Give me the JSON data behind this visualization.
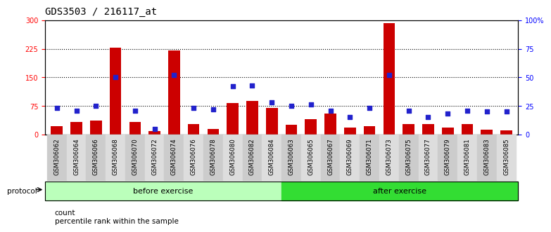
{
  "title": "GDS3503 / 216117_at",
  "samples": [
    "GSM306062",
    "GSM306064",
    "GSM306066",
    "GSM306068",
    "GSM306070",
    "GSM306072",
    "GSM306074",
    "GSM306076",
    "GSM306078",
    "GSM306080",
    "GSM306082",
    "GSM306084",
    "GSM306063",
    "GSM306065",
    "GSM306067",
    "GSM306069",
    "GSM306071",
    "GSM306073",
    "GSM306075",
    "GSM306077",
    "GSM306079",
    "GSM306081",
    "GSM306083",
    "GSM306085"
  ],
  "counts": [
    22,
    32,
    36,
    228,
    32,
    8,
    220,
    28,
    15,
    82,
    88,
    70,
    25,
    40,
    55,
    18,
    22,
    293,
    27,
    28,
    18,
    28,
    12,
    10
  ],
  "percentiles": [
    23,
    21,
    25,
    50,
    21,
    5,
    52,
    23,
    22,
    42,
    43,
    28,
    25,
    26,
    21,
    15,
    23,
    52,
    21,
    15,
    18,
    21,
    20,
    20
  ],
  "before_count": 12,
  "after_count": 12,
  "left_ylim": [
    0,
    300
  ],
  "right_ylim": [
    0,
    100
  ],
  "left_yticks": [
    0,
    75,
    150,
    225,
    300
  ],
  "right_yticks": [
    0,
    25,
    50,
    75,
    100
  ],
  "right_yticklabels": [
    "0",
    "25",
    "50",
    "75",
    "100%"
  ],
  "bar_color": "#cc0000",
  "dot_color": "#2222cc",
  "before_color": "#bbffbb",
  "after_color": "#33dd33",
  "tick_bg_even": "#cccccc",
  "tick_bg_odd": "#dddddd",
  "grid_color": "#000000",
  "bg_color": "#ffffff",
  "protocol_label": "protocol",
  "before_label": "before exercise",
  "after_label": "after exercise",
  "legend_count": "count",
  "legend_pct": "percentile rank within the sample",
  "title_fontsize": 10,
  "tick_fontsize": 7,
  "label_fontsize": 8
}
